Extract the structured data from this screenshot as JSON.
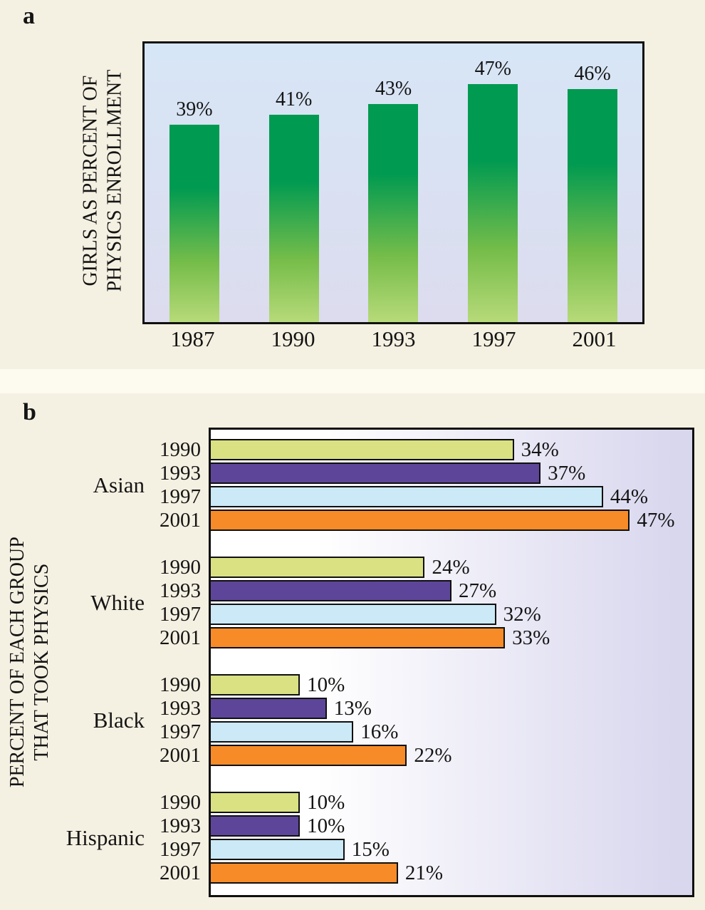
{
  "panels": {
    "a": {
      "label": "a"
    },
    "b": {
      "label": "b"
    }
  },
  "chart_data": [
    {
      "type": "bar",
      "orientation": "vertical",
      "title": "",
      "ylabel": "GIRLS AS PERCENT OF PHYSICS ENROLLMENT",
      "ylabel_lines": [
        "GIRLS AS PERCENT OF",
        "PHYSICS ENROLLMENT"
      ],
      "xlabel": "",
      "categories": [
        "1987",
        "1990",
        "1993",
        "1997",
        "2001"
      ],
      "values": [
        39,
        41,
        43,
        47,
        46
      ],
      "value_labels": [
        "39%",
        "41%",
        "43%",
        "47%",
        "46%"
      ],
      "ylim": [
        0,
        55
      ],
      "grid": false,
      "legend": "none",
      "bar_gradient": [
        "#009a51",
        "#76bd4a",
        "#b7da79"
      ],
      "plot_bg_top": "#d7e6f6",
      "plot_bg_bottom": "#dcdcee"
    },
    {
      "type": "bar",
      "orientation": "horizontal",
      "title": "",
      "ylabel": "PERCENT OF EACH GROUP THAT TOOK PHYSICS",
      "ylabel_lines": [
        "PERCENT OF EACH GROUP",
        "THAT TOOK PHYSICS"
      ],
      "xlabel": "",
      "years": [
        "1990",
        "1993",
        "1997",
        "2001"
      ],
      "year_colors": {
        "1990": "#d9e183",
        "1993": "#5d4699",
        "1997": "#cbe9f6",
        "2001": "#f68b28"
      },
      "groups": [
        {
          "name": "Asian",
          "values": [
            34,
            37,
            44,
            47
          ],
          "value_labels": [
            "34%",
            "37%",
            "44%",
            "47%"
          ]
        },
        {
          "name": "White",
          "values": [
            24,
            27,
            32,
            33
          ],
          "value_labels": [
            "24%",
            "27%",
            "32%",
            "33%"
          ]
        },
        {
          "name": "Black",
          "values": [
            10,
            13,
            16,
            22
          ],
          "value_labels": [
            "10%",
            "13%",
            "16%",
            "22%"
          ]
        },
        {
          "name": "Hispanic",
          "values": [
            10,
            10,
            15,
            21
          ],
          "value_labels": [
            "10%",
            "10%",
            "15%",
            "21%"
          ]
        }
      ],
      "xlim": [
        0,
        54
      ],
      "grid": false,
      "legend": "none"
    }
  ]
}
